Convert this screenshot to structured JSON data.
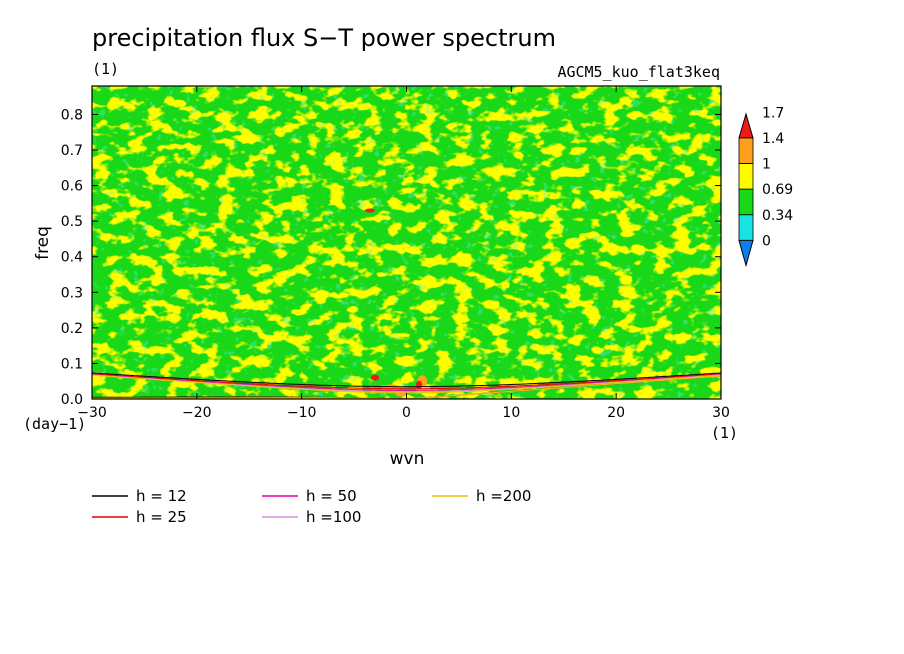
{
  "chart_data": {
    "type": "heatmap",
    "title": "precipitation flux S−T power spectrum",
    "title_units": "(1)",
    "experiment": "AGCM5_kuo_flat3keq",
    "xlabel": "wvn",
    "ylabel": "freq",
    "x_units": "(1)",
    "y_units": "(day−1)",
    "xlim": [
      -30,
      30
    ],
    "ylim": [
      0,
      0.88
    ],
    "xticks": [
      -30,
      -20,
      -10,
      0,
      10,
      20,
      30
    ],
    "xtick_labels": [
      "−30",
      "−20",
      "−10",
      "0",
      "10",
      "20",
      "30"
    ],
    "yticks": [
      0,
      0.1,
      0.2,
      0.3,
      0.4,
      0.5,
      0.6,
      0.7,
      0.8
    ],
    "ytick_labels": [
      "0.0",
      "0.1",
      "0.2",
      "0.3",
      "0.4",
      "0.5",
      "0.6",
      "0.7",
      "0.8"
    ],
    "colorbar": {
      "levels": [
        0,
        0.34,
        0.69,
        1,
        1.4,
        1.7
      ],
      "level_labels": [
        "0",
        "0.34",
        "0.69",
        "1",
        "1.4",
        "1.7"
      ],
      "colors": [
        "#0b7ef0",
        "#18e4e4",
        "#18d818",
        "#fffc00",
        "#ffa01c",
        "#f01818"
      ]
    },
    "dispersion_curves": [
      {
        "name": "h = 12",
        "h": 12,
        "color": "#000000"
      },
      {
        "name": "h = 25",
        "h": 25,
        "color": "#e80000"
      },
      {
        "name": "h = 50",
        "h": 50,
        "color": "#e0009e"
      },
      {
        "name": "h =100",
        "h": 100,
        "color": "#d890d8"
      },
      {
        "name": "h =200",
        "h": 200,
        "color": "#f0c400"
      }
    ],
    "grid": false,
    "legend_position": "bottom-left"
  }
}
